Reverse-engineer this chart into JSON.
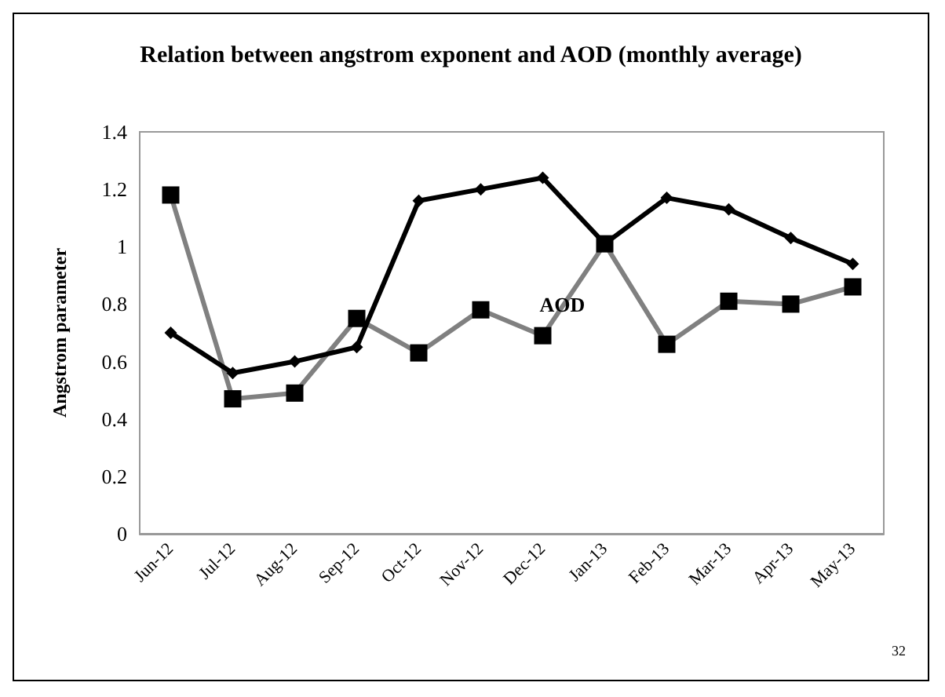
{
  "chart_data": {
    "type": "line",
    "title": "Relation between angstrom exponent and AOD (monthly average)",
    "ylabel": "Angstrom parameter",
    "categories": [
      "Jun-12",
      "Jul-12",
      "Aug-12",
      "Sep-12",
      "Oct-12",
      "Nov-12",
      "Dec-12",
      "Jan-13",
      "Feb-13",
      "Mar-13",
      "Apr-13",
      "May-13"
    ],
    "series": [
      {
        "color": "#000000",
        "marker": "diamond",
        "values": [
          0.7,
          0.56,
          0.6,
          0.65,
          1.16,
          1.2,
          1.24,
          1.01,
          1.17,
          1.13,
          1.03,
          0.94
        ]
      },
      {
        "name": "AOD",
        "color": "#808080",
        "marker": "square",
        "colors": [
          "#000000",
          "#000000",
          "#000000",
          "#000000",
          "#000000",
          "#000000",
          "#000000",
          "#000000",
          "#000000",
          "#000000",
          "#000000",
          "#000000"
        ],
        "values": [
          1.18,
          0.47,
          0.49,
          0.75,
          0.63,
          0.78,
          0.69,
          1.01,
          0.66,
          0.81,
          0.8,
          0.86
        ]
      }
    ],
    "ylim": [
      0,
      1.4
    ],
    "yticks": [
      0,
      0.2,
      0.4,
      0.6,
      0.8,
      1,
      1.2,
      1.4
    ],
    "grid": false,
    "legend": false,
    "annotations": [
      "32"
    ]
  }
}
